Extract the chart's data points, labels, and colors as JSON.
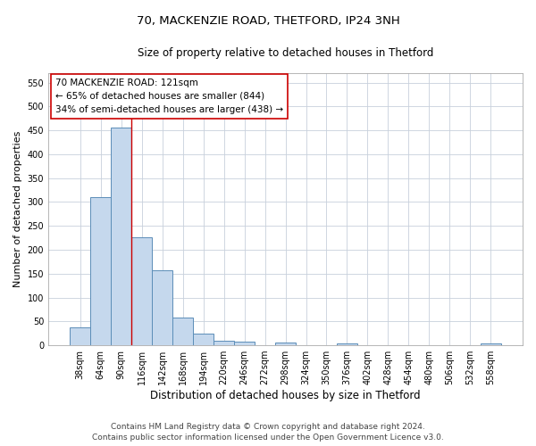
{
  "title_line1": "70, MACKENZIE ROAD, THETFORD, IP24 3NH",
  "title_line2": "Size of property relative to detached houses in Thetford",
  "xlabel": "Distribution of detached houses by size in Thetford",
  "ylabel": "Number of detached properties",
  "categories": [
    "38sqm",
    "64sqm",
    "90sqm",
    "116sqm",
    "142sqm",
    "168sqm",
    "194sqm",
    "220sqm",
    "246sqm",
    "272sqm",
    "298sqm",
    "324sqm",
    "350sqm",
    "376sqm",
    "402sqm",
    "428sqm",
    "454sqm",
    "480sqm",
    "506sqm",
    "532sqm",
    "558sqm"
  ],
  "values": [
    38,
    310,
    456,
    227,
    158,
    58,
    25,
    10,
    7,
    0,
    5,
    0,
    0,
    3,
    0,
    0,
    0,
    0,
    0,
    0,
    4
  ],
  "bar_color": "#c5d8ed",
  "bar_edgecolor": "#5b8db8",
  "bar_linewidth": 0.7,
  "annotation_text_line1": "70 MACKENZIE ROAD: 121sqm",
  "annotation_text_line2": "← 65% of detached houses are smaller (844)",
  "annotation_text_line3": "34% of semi-detached houses are larger (438) →",
  "annotation_box_color": "#ffffff",
  "annotation_box_edgecolor": "#cc0000",
  "red_line_x": 2.5,
  "ylim": [
    0,
    570
  ],
  "yticks": [
    0,
    50,
    100,
    150,
    200,
    250,
    300,
    350,
    400,
    450,
    500,
    550
  ],
  "footer_line1": "Contains HM Land Registry data © Crown copyright and database right 2024.",
  "footer_line2": "Contains public sector information licensed under the Open Government Licence v3.0.",
  "background_color": "#ffffff",
  "grid_color": "#c8d0dc",
  "title_fontsize": 9.5,
  "subtitle_fontsize": 8.5,
  "ylabel_fontsize": 8,
  "xlabel_fontsize": 8.5,
  "tick_fontsize": 7,
  "annotation_fontsize": 7.5,
  "footer_fontsize": 6.5
}
